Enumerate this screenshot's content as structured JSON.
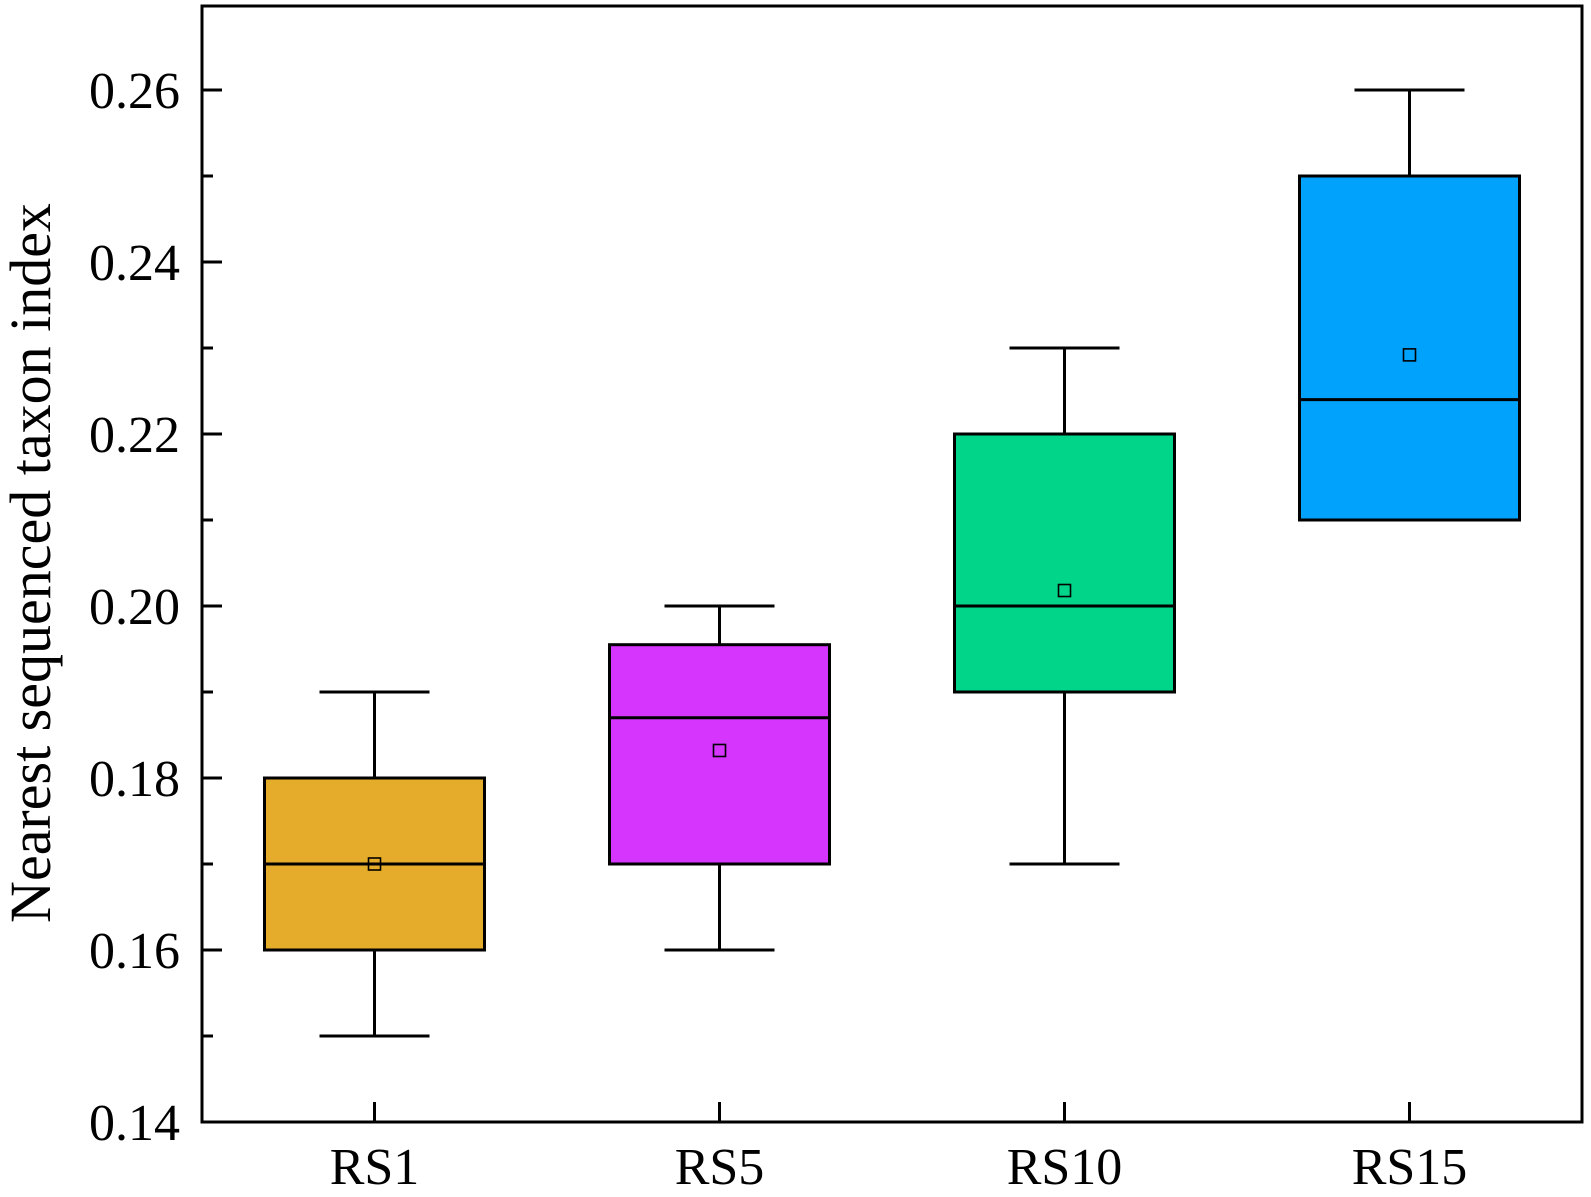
{
  "chart_data": {
    "type": "box",
    "title": "",
    "xlabel": "",
    "ylabel": "Nearest sequenced taxon index",
    "ylim": [
      0.14,
      0.27
    ],
    "y_ticks": [
      0.14,
      0.16,
      0.18,
      0.2,
      0.22,
      0.24,
      0.26
    ],
    "y_tick_labels": [
      "0.14",
      "0.16",
      "0.18",
      "0.20",
      "0.22",
      "0.24",
      "0.26"
    ],
    "y_minor_ticks": [
      0.15,
      0.17,
      0.19,
      0.21,
      0.23,
      0.25
    ],
    "grid": false,
    "legend": "none",
    "categories": [
      "RS1",
      "RS5",
      "RS10",
      "RS15"
    ],
    "boxes": [
      {
        "category": "RS1",
        "whisker_low": 0.15,
        "q1": 0.16,
        "median": 0.17,
        "q3": 0.18,
        "whisker_high": 0.19,
        "mean": 0.17,
        "color": "#E5AC2B"
      },
      {
        "category": "RS5",
        "whisker_low": 0.16,
        "q1": 0.17,
        "median": 0.187,
        "q3": 0.1955,
        "whisker_high": 0.2,
        "mean": 0.1832,
        "color": "#D535FD"
      },
      {
        "category": "RS10",
        "whisker_low": 0.17,
        "q1": 0.19,
        "median": 0.2,
        "q3": 0.22,
        "whisker_high": 0.23,
        "mean": 0.2018,
        "color": "#00D58A"
      },
      {
        "category": "RS15",
        "whisker_low": 0.21,
        "q1": 0.21,
        "median": 0.224,
        "q3": 0.25,
        "whisker_high": 0.26,
        "mean": 0.2292,
        "color": "#00A2FB"
      }
    ]
  }
}
